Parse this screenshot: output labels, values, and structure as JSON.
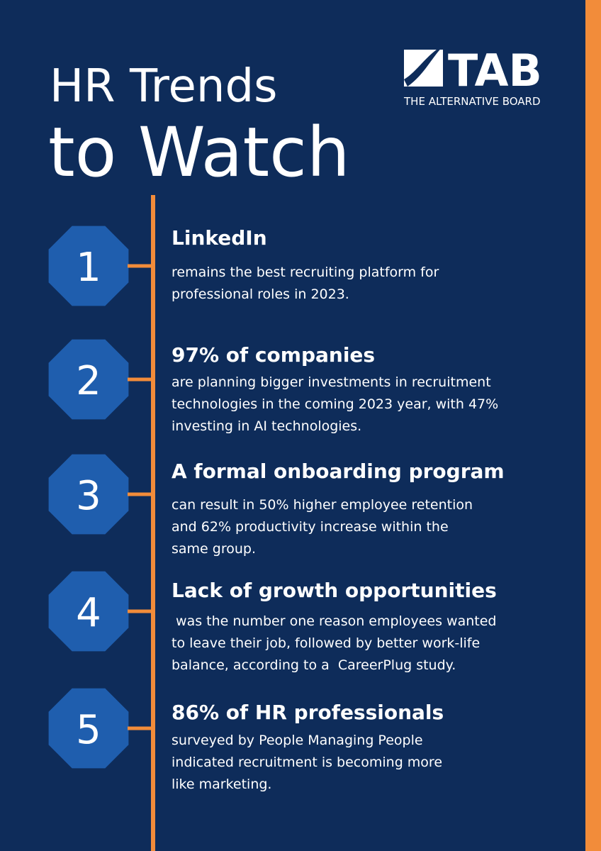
{
  "header": {
    "title_line1": "HR Trends",
    "title_line2": "to Watch"
  },
  "logo": {
    "name": "TAB",
    "tagline": "THE ALTERNATIVE BOARD"
  },
  "items": [
    {
      "number": "1",
      "heading": "LinkedIn",
      "body": [
        "remains the best recruiting platform for",
        "professional roles in 2023."
      ]
    },
    {
      "number": "2",
      "heading": "97% of companies",
      "body": [
        "are planning bigger investments in recruitment",
        "technologies in the coming 2023 year, with 47%",
        "investing in AI technologies."
      ]
    },
    {
      "number": "3",
      "heading": "A formal onboarding program",
      "body": [
        "can result in 50% higher employee retention",
        "and 62% productivity increase within the",
        "same group."
      ]
    },
    {
      "number": "4",
      "heading": "Lack of growth opportunities",
      "body": [
        " was the number one reason employees wanted",
        "to leave their job, followed by better work-life",
        "balance, according to a  CareerPlug study."
      ]
    },
    {
      "number": "5",
      "heading": "86% of HR professionals",
      "body": [
        "surveyed by People Managing People",
        "indicated recruitment is becoming more",
        "like marketing."
      ]
    }
  ]
}
